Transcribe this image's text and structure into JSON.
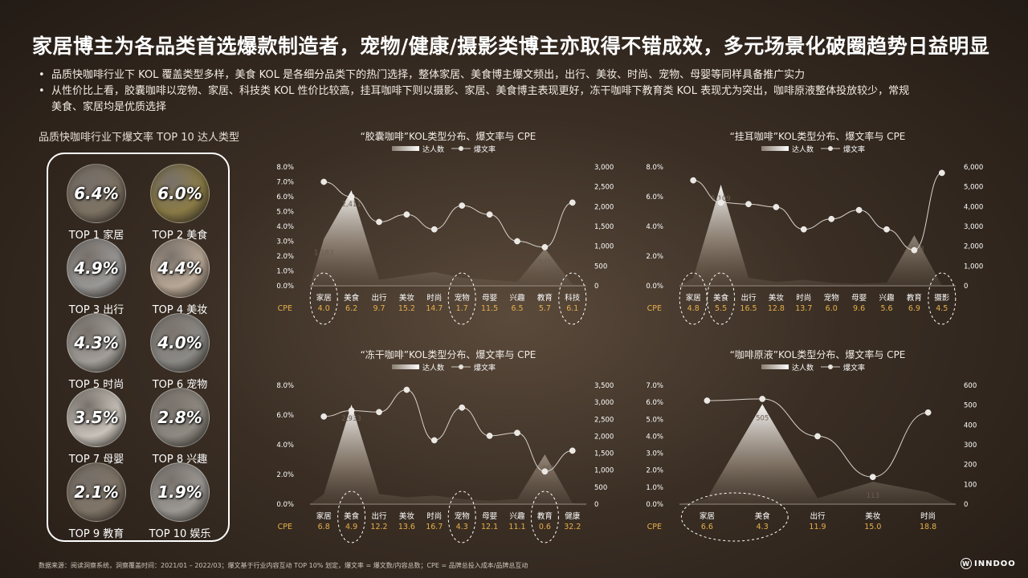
{
  "title": "家居博主为各品类首选爆款制造者，宠物/健康/摄影类博主亦取得不错成效，多元场景化破圈趋势日益明显",
  "bullets": [
    "品质快咖啡行业下 KOL 覆盖类型多样，美食 KOL 是各细分品类下的热门选择，整体家居、美食博主爆文频出，出行、美妆、时尚、宠物、母婴等同样具备推广实力",
    "从性价比上看，胶囊咖啡以宠物、家居、科技类 KOL 性价比较高，挂耳咖啡下则以摄影、家居、美食博主表现更好，冻干咖啡下教育类 KOL 表现尤为突出，咖啡原液整体投放较少，常规",
    "美食、家居均是优质选择"
  ],
  "top_panel": {
    "title": "品质快咖啡行业下爆文率 TOP 10 达人类型",
    "items": [
      {
        "pct": "6.4%",
        "label": "TOP 1 家居",
        "color": "#7d7263"
      },
      {
        "pct": "6.0%",
        "label": "TOP 2 美食",
        "color": "#8a7b46"
      },
      {
        "pct": "4.9%",
        "label": "TOP 3 出行",
        "color": "#9a9896"
      },
      {
        "pct": "4.4%",
        "label": "TOP 4 美妆",
        "color": "#b9a896"
      },
      {
        "pct": "4.3%",
        "label": "TOP 5 时尚",
        "color": "#a29e99"
      },
      {
        "pct": "4.0%",
        "label": "TOP 6 宠物",
        "color": "#8c8a86"
      },
      {
        "pct": "3.5%",
        "label": "TOP 7 母婴",
        "color": "#c9c3bb"
      },
      {
        "pct": "2.8%",
        "label": "TOP 8 兴趣",
        "color": "#8f8a82"
      },
      {
        "pct": "2.1%",
        "label": "TOP 9 教育",
        "color": "#807567"
      },
      {
        "pct": "1.9%",
        "label": "TOP 10 娱乐",
        "color": "#9c9995"
      }
    ]
  },
  "chart_data": [
    {
      "type": "area+line",
      "title": "“胶囊咖啡”KOL类型分布、爆文率与 CPE",
      "legend": [
        "达人数",
        "爆文率"
      ],
      "categories": [
        "家居",
        "美食",
        "出行",
        "美妆",
        "时尚",
        "宠物",
        "母婴",
        "兴趣",
        "教育",
        "科技"
      ],
      "kol_count": [
        1183,
        2411,
        150,
        250,
        350,
        200,
        150,
        100,
        945,
        30
      ],
      "kol_labels": {
        "0": "1,183",
        "1": "2,411",
        "8": "945"
      },
      "burst_rate": [
        7.0,
        6.0,
        4.3,
        4.8,
        3.8,
        5.4,
        4.8,
        3.0,
        2.6,
        5.6
      ],
      "cpe_label": "CPE",
      "cpe": [
        "4.0",
        "6.2",
        "9.7",
        "15.2",
        "14.7",
        "1.7",
        "11.5",
        "6.5",
        "5.7",
        "6.1"
      ],
      "highlight": [
        0,
        5,
        9
      ],
      "y_left": [
        "0.0%",
        "1.0%",
        "2.0%",
        "3.0%",
        "4.0%",
        "5.0%",
        "6.0%",
        "7.0%",
        "8.0%"
      ],
      "y_right": [
        "0",
        "500",
        "1,000",
        "1,500",
        "2,000",
        "2,500",
        "3,000"
      ],
      "ylim_left": [
        0,
        8
      ],
      "ylim_right": [
        0,
        3000
      ]
    },
    {
      "type": "area+line",
      "title": "“挂耳咖啡”KOL类型分布、爆文率与 CPE",
      "legend": [
        "达人数",
        "爆文率"
      ],
      "categories": [
        "家居",
        "美食",
        "出行",
        "美妆",
        "时尚",
        "宠物",
        "母婴",
        "兴趣",
        "教育",
        "摄影"
      ],
      "kol_count": [
        400,
        5109,
        400,
        200,
        300,
        150,
        100,
        150,
        2548,
        20
      ],
      "kol_labels": {
        "1": "5,109",
        "8": "2,548"
      },
      "burst_rate": [
        7.1,
        5.6,
        5.5,
        5.3,
        3.8,
        4.5,
        5.1,
        3.8,
        2.4,
        7.6
      ],
      "cpe_label": "CPE",
      "cpe": [
        "4.8",
        "5.5",
        "16.5",
        "12.8",
        "13.7",
        "6.0",
        "9.6",
        "5.6",
        "6.9",
        "4.5"
      ],
      "highlight": [
        0,
        1,
        9
      ],
      "y_left": [
        "0.0%",
        "2.0%",
        "4.0%",
        "6.0%",
        "8.0%"
      ],
      "y_right": [
        "0",
        "1,000",
        "2,000",
        "3,000",
        "4,000",
        "5,000",
        "6,000"
      ],
      "ylim_left": [
        0,
        8
      ],
      "ylim_right": [
        0,
        6000
      ]
    },
    {
      "type": "area+line",
      "title": "“冻干咖啡”KOL类型分布、爆文率与 CPE",
      "legend": [
        "达人数",
        "爆文率"
      ],
      "categories": [
        "家居",
        "美食",
        "出行",
        "美妆",
        "时尚",
        "宠物",
        "母婴",
        "兴趣",
        "教育",
        "健康"
      ],
      "kol_count": [
        300,
        2933,
        300,
        200,
        250,
        150,
        100,
        150,
        1466,
        30
      ],
      "kol_labels": {
        "1": "2,933",
        "8": "1,466"
      },
      "burst_rate": [
        5.9,
        6.3,
        6.2,
        7.7,
        4.3,
        6.5,
        4.6,
        4.8,
        2.2,
        3.6
      ],
      "cpe_label": "CPE",
      "cpe": [
        "6.8",
        "4.9",
        "12.2",
        "13.6",
        "16.7",
        "4.3",
        "12.1",
        "11.1",
        "0.6",
        "32.2"
      ],
      "highlight": [
        1,
        5,
        8
      ],
      "y_left": [
        "0.0%",
        "2.0%",
        "4.0%",
        "6.0%",
        "8.0%"
      ],
      "y_right": [
        "0",
        "500",
        "1,000",
        "1,500",
        "2,000",
        "2,500",
        "3,000",
        "3,500"
      ],
      "ylim_left": [
        0,
        8
      ],
      "ylim_right": [
        0,
        3500
      ]
    },
    {
      "type": "area+line",
      "title": "“咖啡原液”KOL类型分布、爆文率与 CPE",
      "legend": [
        "达人数",
        "爆文率"
      ],
      "categories": [
        "家居",
        "美食",
        "出行",
        "美妆",
        "时尚"
      ],
      "kol_count": [
        30,
        505,
        30,
        113,
        60
      ],
      "kol_labels": {
        "1": "505",
        "3": "113"
      },
      "burst_rate": [
        6.1,
        6.2,
        4.0,
        1.6,
        5.4
      ],
      "cpe_label": "CPE",
      "cpe": [
        "6.6",
        "4.3",
        "11.9",
        "15.0",
        "18.8"
      ],
      "highlight_wide": [
        0,
        1
      ],
      "y_left": [
        "0.0%",
        "1.0%",
        "2.0%",
        "3.0%",
        "4.0%",
        "5.0%",
        "6.0%",
        "7.0%"
      ],
      "y_right": [
        "0",
        "100",
        "200",
        "300",
        "400",
        "500",
        "600"
      ],
      "ylim_left": [
        0,
        7
      ],
      "ylim_right": [
        0,
        600
      ]
    }
  ],
  "footer": "数据来源：阅读洞察系统，洞察覆盖时间：2021/01 – 2022/03；爆文基于行业内容互动 TOP 10% 划定，爆文率 = 爆文数/内容总数；CPE = 品牌总投入成本/品牌总互动",
  "logo": {
    "mark": "W",
    "text": "INNDOO"
  }
}
